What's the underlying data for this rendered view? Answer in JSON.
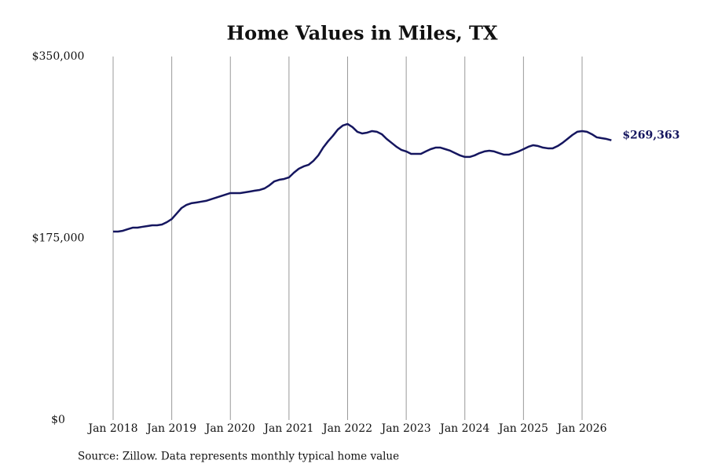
{
  "chart_data": {
    "type": "line",
    "title": "Home Values in Miles, TX",
    "source": "Source: Zillow. Data represents monthly typical home value",
    "categories": [
      "Jan 2018",
      null,
      null,
      null,
      null,
      null,
      null,
      null,
      null,
      null,
      null,
      null,
      "Jan 2019",
      null,
      null,
      null,
      null,
      null,
      null,
      null,
      null,
      null,
      null,
      null,
      "Jan 2020",
      null,
      null,
      null,
      null,
      null,
      null,
      null,
      null,
      null,
      null,
      null,
      "Jan 2021",
      null,
      null,
      null,
      null,
      null,
      null,
      null,
      null,
      null,
      null,
      null,
      "Jan 2022",
      null,
      null,
      null,
      null,
      null,
      null,
      null,
      null,
      null,
      null,
      null,
      "Jan 2023",
      null,
      null,
      null,
      null,
      null,
      null,
      null,
      null,
      null,
      null,
      null,
      "Jan 2024",
      null,
      null,
      null,
      null,
      null,
      null,
      null,
      null,
      null,
      null,
      null,
      "Jan 2025",
      null,
      null,
      null,
      null,
      null,
      null,
      null,
      null,
      null,
      null,
      null,
      "Jan 2026",
      null,
      null,
      null,
      null,
      null,
      null
    ],
    "values": [
      181400,
      181400,
      182200,
      183700,
      185200,
      185200,
      186000,
      186700,
      187500,
      187500,
      188200,
      190500,
      193500,
      198800,
      204100,
      207100,
      208700,
      209400,
      210200,
      211000,
      212500,
      214000,
      215500,
      217000,
      218500,
      218500,
      218500,
      219200,
      220000,
      220800,
      221500,
      223000,
      226000,
      229800,
      231300,
      232100,
      233600,
      238100,
      241900,
      244200,
      245700,
      249500,
      254800,
      262300,
      268400,
      273700,
      279700,
      283500,
      285000,
      282000,
      277500,
      275900,
      276700,
      278200,
      277500,
      275200,
      270600,
      266900,
      263100,
      260100,
      258600,
      256300,
      256300,
      256300,
      258600,
      260800,
      262300,
      262300,
      260800,
      259300,
      257000,
      254800,
      253300,
      253300,
      254800,
      257000,
      258600,
      259300,
      258600,
      257000,
      255500,
      255500,
      257000,
      258600,
      260800,
      263100,
      264600,
      263800,
      262300,
      261600,
      261600,
      263800,
      266900,
      270600,
      274400,
      277500,
      278200,
      277500,
      275200,
      272200,
      271400,
      270600,
      269363
    ],
    "value_labels": [
      null,
      null,
      null,
      null,
      null,
      null,
      null,
      null,
      null,
      null,
      null,
      null,
      null,
      null,
      null,
      null,
      null,
      null,
      null,
      null,
      null,
      null,
      null,
      null,
      null,
      null,
      null,
      null,
      null,
      null,
      null,
      null,
      null,
      null,
      null,
      null,
      null,
      null,
      null,
      null,
      null,
      null,
      null,
      null,
      null,
      null,
      null,
      null,
      null,
      null,
      null,
      null,
      null,
      null,
      null,
      null,
      null,
      null,
      null,
      null,
      null,
      null,
      null,
      null,
      null,
      null,
      null,
      null,
      null,
      null,
      null,
      null,
      null,
      null,
      null,
      null,
      null,
      null,
      null,
      null,
      null,
      null,
      null,
      null,
      null,
      null,
      null,
      null,
      null,
      null,
      null,
      null,
      null,
      null,
      null,
      null,
      null,
      null,
      null,
      null,
      null,
      null,
      "$269,363"
    ],
    "color": "#15165f",
    "ylim": [
      0,
      350000
    ],
    "yticks": [
      {
        "value": 0,
        "label": "$0"
      },
      {
        "value": 175000,
        "label": "$175,000"
      },
      {
        "value": 350000,
        "label": "$350,000"
      }
    ],
    "grid": "x"
  }
}
